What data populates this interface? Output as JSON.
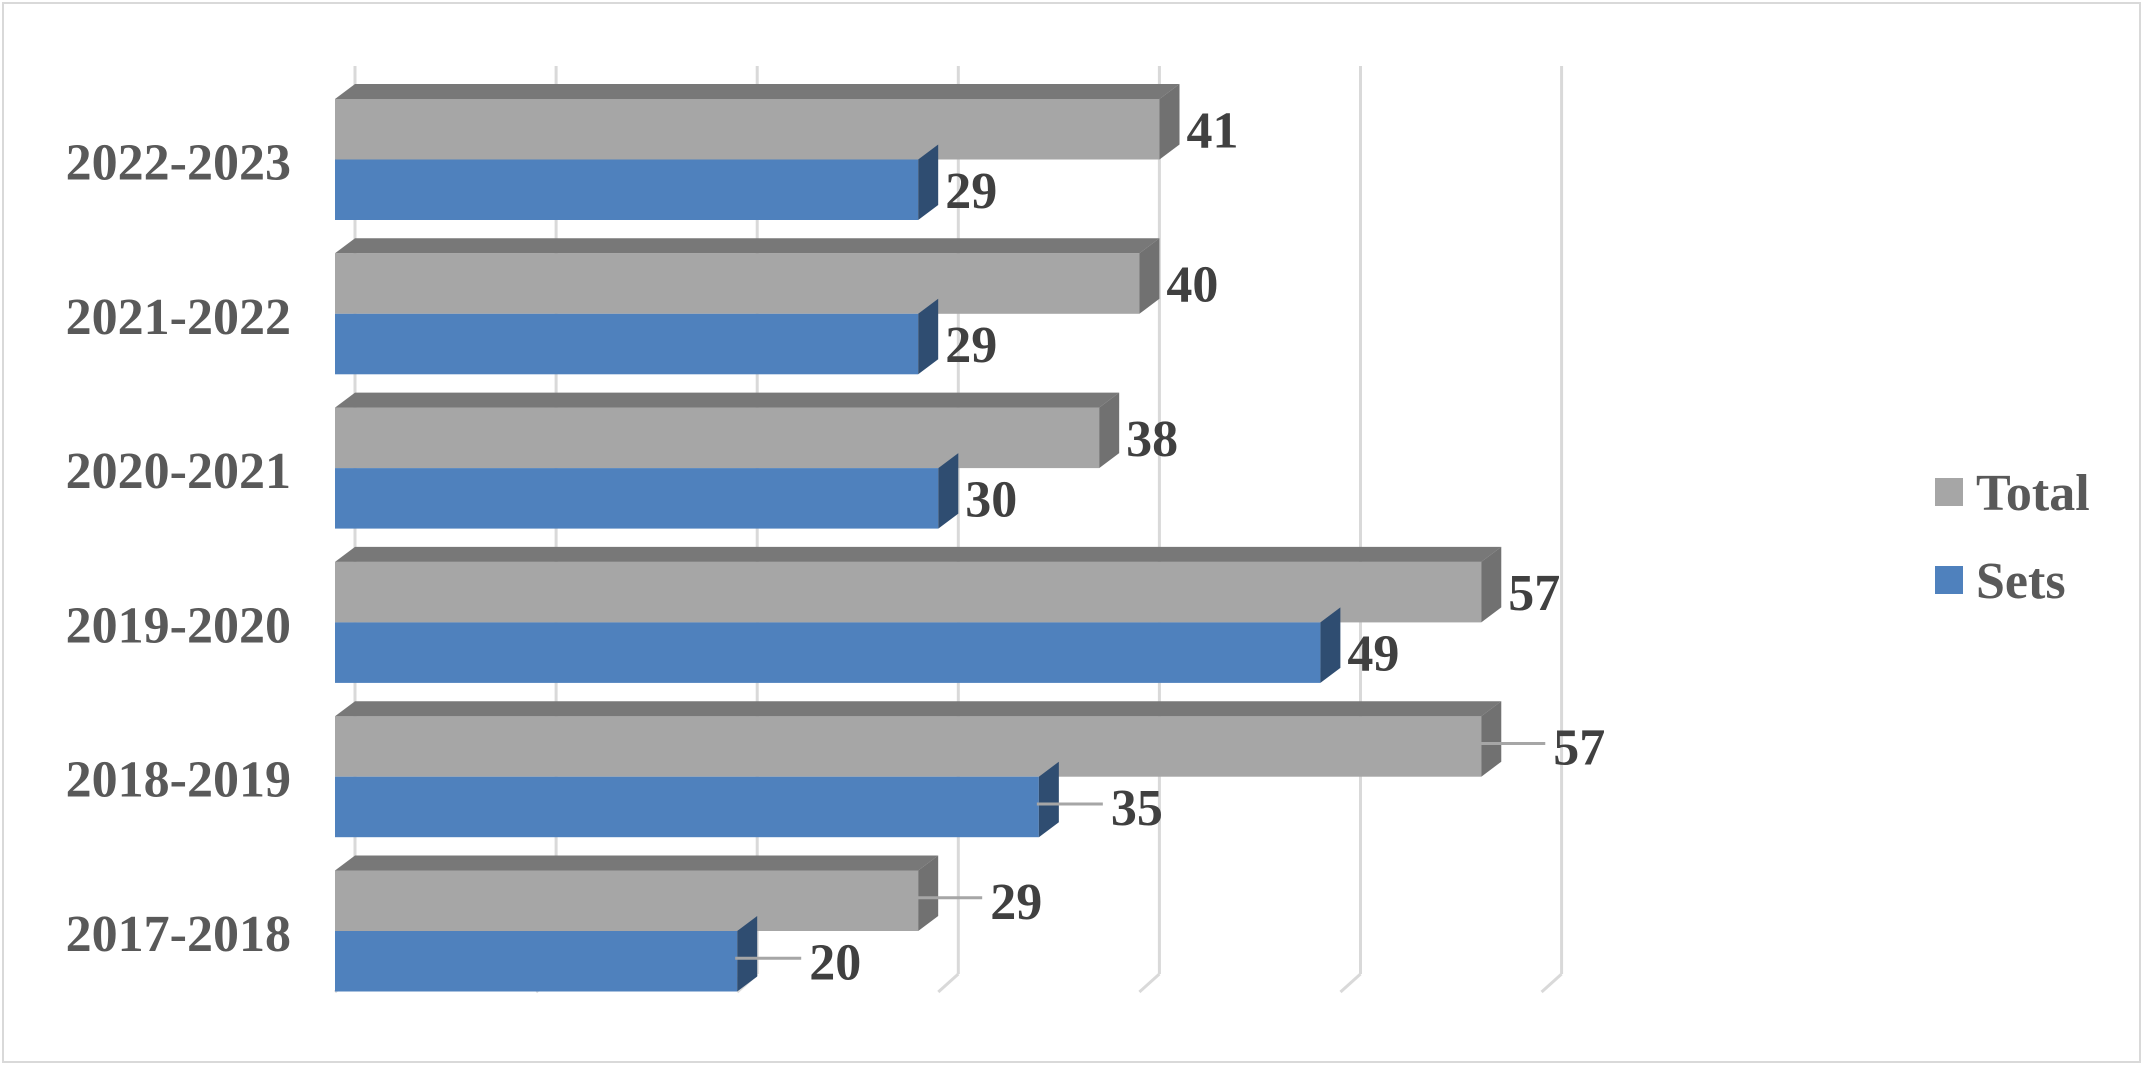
{
  "chart_data": {
    "type": "bar",
    "orientation": "horizontal",
    "style": "3d-clustered",
    "categories": [
      "2022-2023",
      "2021-2022",
      "2020-2021",
      "2019-2020",
      "2018-2019",
      "2017-2018"
    ],
    "series": [
      {
        "name": "Total",
        "values": [
          41,
          40,
          38,
          57,
          57,
          29
        ],
        "color": "#a6a6a6"
      },
      {
        "name": "Sets",
        "values": [
          29,
          29,
          30,
          49,
          35,
          20
        ],
        "color": "#4f81bd"
      }
    ],
    "title": "",
    "xlabel": "",
    "ylabel": "",
    "xlim": [
      0,
      60
    ],
    "grid": true,
    "axis_tick_labels_shown": false,
    "data_labels": true,
    "legend": {
      "position": "right",
      "entries": [
        "Total",
        "Sets"
      ]
    }
  }
}
